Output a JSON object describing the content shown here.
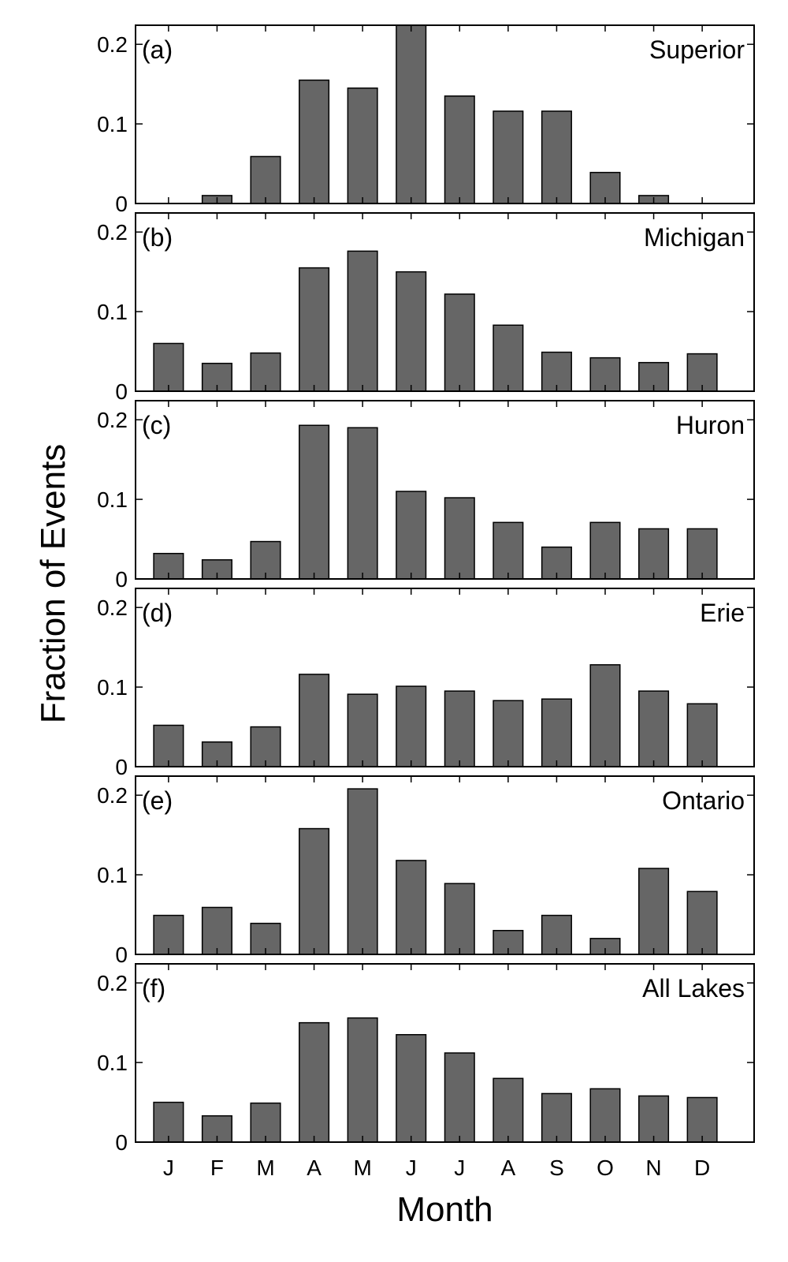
{
  "chart_data": {
    "type": "bar",
    "ylabel": "Fraction of Events",
    "xlabel": "Month",
    "categories": [
      "J",
      "F",
      "M",
      "A",
      "M",
      "J",
      "J",
      "A",
      "S",
      "O",
      "N",
      "D"
    ],
    "ylim": [
      0,
      0.22
    ],
    "yticks": [
      0,
      0.1,
      0.2
    ],
    "yticklabels": [
      "0",
      "0.1",
      "0.2"
    ],
    "bar_color": "#666666",
    "panels": [
      {
        "label": "(a)",
        "name": "Superior",
        "values": [
          0,
          0.01,
          0.059,
          0.155,
          0.145,
          0.224,
          0.135,
          0.116,
          0.116,
          0.039,
          0.01,
          0
        ]
      },
      {
        "label": "(b)",
        "name": "Michigan",
        "values": [
          0.06,
          0.035,
          0.048,
          0.155,
          0.176,
          0.15,
          0.122,
          0.083,
          0.049,
          0.042,
          0.036,
          0.047
        ]
      },
      {
        "label": "(c)",
        "name": "Huron",
        "values": [
          0.032,
          0.024,
          0.047,
          0.193,
          0.19,
          0.11,
          0.102,
          0.071,
          0.04,
          0.071,
          0.063,
          0.063
        ]
      },
      {
        "label": "(d)",
        "name": "Erie",
        "values": [
          0.052,
          0.031,
          0.05,
          0.116,
          0.091,
          0.101,
          0.095,
          0.083,
          0.085,
          0.128,
          0.095,
          0.079
        ]
      },
      {
        "label": "(e)",
        "name": "Ontario",
        "values": [
          0.049,
          0.059,
          0.039,
          0.158,
          0.208,
          0.118,
          0.089,
          0.03,
          0.049,
          0.02,
          0.108,
          0.079
        ]
      },
      {
        "label": "(f)",
        "name": "All Lakes",
        "values": [
          0.05,
          0.033,
          0.049,
          0.15,
          0.156,
          0.135,
          0.112,
          0.08,
          0.061,
          0.067,
          0.058,
          0.056
        ]
      }
    ]
  }
}
